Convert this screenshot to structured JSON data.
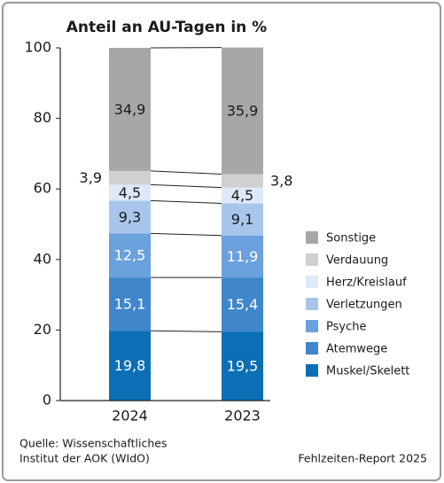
{
  "chart_data": {
    "type": "stacked_bar",
    "title": "Anteil an AU-Tagen in %",
    "categories": [
      "2024",
      "2023"
    ],
    "series": [
      {
        "name": "Muskel/Skelett",
        "color": "#0a6fb5",
        "values": [
          19.8,
          19.5
        ],
        "value_labels": [
          "19,8",
          "19,5"
        ]
      },
      {
        "name": "Atemwege",
        "color": "#3f86cb",
        "values": [
          15.1,
          15.4
        ],
        "value_labels": [
          "15,1",
          "15,4"
        ]
      },
      {
        "name": "Psyche",
        "color": "#6ba1dc",
        "values": [
          12.5,
          11.9
        ],
        "value_labels": [
          "12,5",
          "11,9"
        ]
      },
      {
        "name": "Verletzungen",
        "color": "#a8c6ec",
        "values": [
          9.3,
          9.1
        ],
        "value_labels": [
          "9,3",
          "9,1"
        ]
      },
      {
        "name": "Herz/Kreislauf",
        "color": "#dde9f9",
        "values": [
          4.5,
          4.5
        ],
        "value_labels": [
          "4,5",
          "4,5"
        ]
      },
      {
        "name": "Verdauung",
        "color": "#d0d0d0",
        "values": [
          3.9,
          3.8
        ],
        "value_labels": [
          "3,9",
          "3,8"
        ]
      },
      {
        "name": "Sonstige",
        "color": "#a7a7a7",
        "values": [
          34.9,
          35.9
        ],
        "value_labels": [
          "34,9",
          "35,9"
        ]
      }
    ],
    "ylim": [
      0,
      100
    ],
    "yticks": [
      0,
      20,
      40,
      60,
      80,
      100
    ],
    "source": [
      "Quelle: Wissenschaftliches",
      "Institut der AOK (WIdO)"
    ],
    "footer": "Fehlzeiten-Report 2025"
  }
}
